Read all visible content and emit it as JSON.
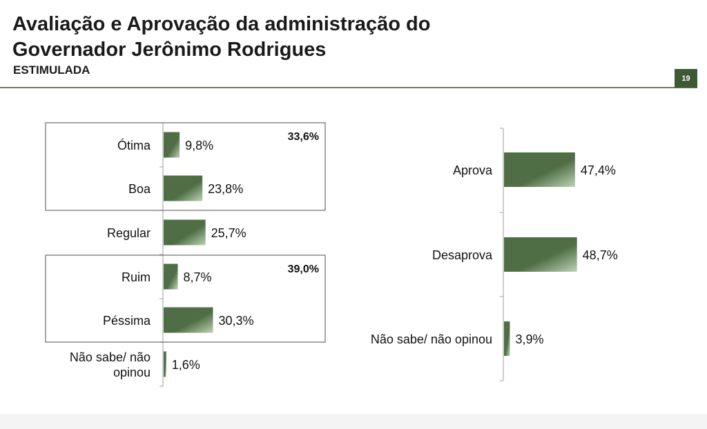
{
  "header": {
    "title_line1": "Avaliação e Aprovação da administração do",
    "title_line2": "Governador Jerônimo Rodrigues",
    "subtitle": "ESTIMULADA",
    "page_number": "19"
  },
  "colors": {
    "bar_dark": "#4f6e45",
    "bar_light": "#bcd3b4",
    "accent": "#3d5a34"
  },
  "chart_data": [
    {
      "type": "bar",
      "orientation": "horizontal",
      "categories": [
        "Ótima",
        "Boa",
        "Regular",
        "Ruim",
        "Péssima",
        "Não sabe/ não opinou"
      ],
      "category_lines": [
        [
          "Ótima"
        ],
        [
          "Boa"
        ],
        [
          "Regular"
        ],
        [
          "Ruim"
        ],
        [
          "Péssima"
        ],
        [
          "Não sabe/ não",
          "opinou"
        ]
      ],
      "values": [
        9.8,
        23.8,
        25.7,
        8.7,
        30.3,
        1.6
      ],
      "value_labels": [
        "9,8%",
        "23,8%",
        "25,7%",
        "8,7%",
        "30,3%",
        "1,6%"
      ],
      "groups": [
        {
          "label": "33,6%",
          "members": [
            "Ótima",
            "Boa"
          ]
        },
        {
          "label": "39,0%",
          "members": [
            "Ruim",
            "Péssima"
          ]
        }
      ],
      "unit": "%",
      "xlim": [
        0,
        100
      ],
      "grid": false
    },
    {
      "type": "bar",
      "orientation": "horizontal",
      "categories": [
        "Aprova",
        "Desaprova",
        "Não sabe/ não opinou"
      ],
      "category_lines": [
        [
          "Aprova"
        ],
        [
          "Desaprova"
        ],
        [
          "Não sabe/ não opinou"
        ]
      ],
      "values": [
        47.4,
        48.7,
        3.9
      ],
      "value_labels": [
        "47,4%",
        "48,7%",
        "3,9%"
      ],
      "unit": "%",
      "xlim": [
        0,
        100
      ],
      "grid": false
    }
  ]
}
